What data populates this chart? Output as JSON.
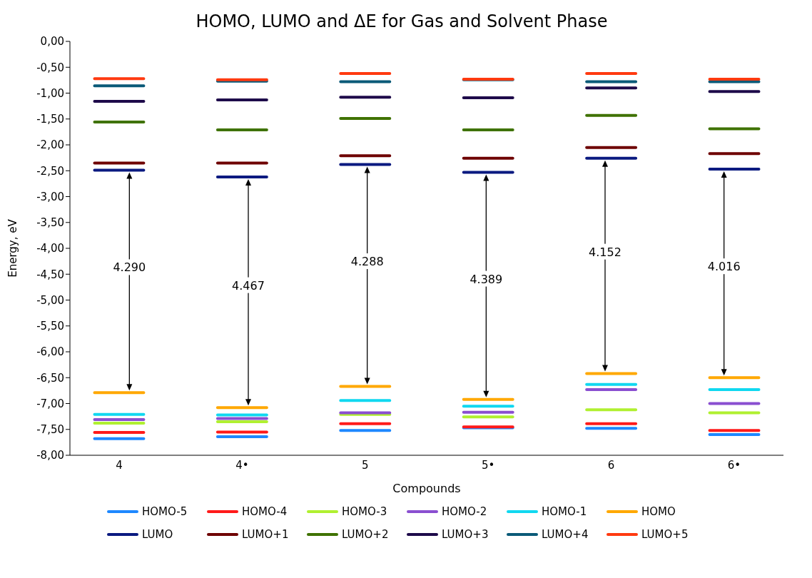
{
  "chart_data": {
    "type": "line",
    "title": "HOMO, LUMO and ΔE for Gas and Solvent Phase",
    "xlabel": "Compounds",
    "ylabel": "Energy, eV",
    "categories": [
      null,
      null,
      "4",
      null,
      null,
      null,
      null,
      "4•",
      null,
      null,
      null,
      null,
      "5",
      null,
      null,
      null,
      null,
      "5•",
      null,
      null,
      null,
      null,
      "6",
      null,
      null,
      null,
      null,
      "6•",
      null,
      null
    ],
    "ylim": [
      -8,
      0
    ],
    "yticks": [
      {
        "value": 0,
        "label": "0,00"
      },
      {
        "value": -0.5,
        "label": "-0,50"
      },
      {
        "value": -1,
        "label": "-1,00"
      },
      {
        "value": -1.5,
        "label": "-1,50"
      },
      {
        "value": -2,
        "label": "-2,00"
      },
      {
        "value": -2.5,
        "label": "-2,50"
      },
      {
        "value": -3,
        "label": "-3,00"
      },
      {
        "value": -3.5,
        "label": "-3,50"
      },
      {
        "value": -4,
        "label": "-4,00"
      },
      {
        "value": -4.5,
        "label": "-4,50"
      },
      {
        "value": -5,
        "label": "-5,00"
      },
      {
        "value": -5.5,
        "label": "-5,50"
      },
      {
        "value": -6,
        "label": "-6,00"
      },
      {
        "value": -6.5,
        "label": "-6,50"
      },
      {
        "value": -7,
        "label": "-7,00"
      },
      {
        "value": -7.5,
        "label": "-7,50"
      },
      {
        "value": -8,
        "label": "-8,00"
      }
    ],
    "grid": false,
    "legend": "bottom",
    "line_style": "solid",
    "series": [
      {
        "name": "HOMO-5",
        "color": "#1e88ff",
        "values": [
          null,
          -7.68,
          -7.68,
          -7.68,
          null,
          null,
          -7.64,
          -7.64,
          -7.64,
          null,
          null,
          -7.52,
          -7.52,
          -7.52,
          null,
          null,
          -7.47,
          -7.47,
          -7.47,
          null,
          null,
          -7.48,
          -7.48,
          -7.48,
          null,
          null,
          -7.6,
          -7.6,
          -7.6,
          null
        ]
      },
      {
        "name": "HOMO-4",
        "color": "#ff1a1a",
        "values": [
          null,
          -7.56,
          -7.56,
          -7.56,
          null,
          null,
          -7.55,
          -7.55,
          -7.55,
          null,
          null,
          -7.39,
          -7.39,
          -7.39,
          null,
          null,
          -7.45,
          -7.45,
          -7.45,
          null,
          null,
          -7.39,
          -7.39,
          -7.39,
          null,
          null,
          -7.52,
          -7.52,
          -7.52,
          null
        ]
      },
      {
        "name": "HOMO-3",
        "color": "#b0f030",
        "values": [
          null,
          -7.38,
          -7.38,
          -7.38,
          null,
          null,
          -7.35,
          -7.35,
          -7.35,
          null,
          null,
          -7.21,
          -7.21,
          -7.21,
          null,
          null,
          -7.26,
          -7.26,
          -7.26,
          null,
          null,
          -7.12,
          -7.12,
          -7.12,
          null,
          null,
          -7.18,
          -7.18,
          -7.18,
          null
        ]
      },
      {
        "name": "HOMO-2",
        "color": "#8a4fd0",
        "values": [
          null,
          -7.31,
          -7.31,
          -7.31,
          null,
          null,
          -7.29,
          -7.29,
          -7.29,
          null,
          null,
          -7.18,
          -7.18,
          -7.18,
          null,
          null,
          -7.17,
          -7.17,
          -7.17,
          null,
          null,
          -6.73,
          -6.73,
          -6.73,
          null,
          null,
          -7.0,
          -7.0,
          -7.0,
          null
        ]
      },
      {
        "name": "HOMO-1",
        "color": "#10d8f0",
        "values": [
          null,
          -7.21,
          -7.21,
          -7.21,
          null,
          null,
          -7.22,
          -7.22,
          -7.22,
          null,
          null,
          -6.94,
          -6.94,
          -6.94,
          null,
          null,
          -7.05,
          -7.05,
          -7.05,
          null,
          null,
          -6.63,
          -6.63,
          -6.63,
          null,
          null,
          -6.73,
          -6.73,
          -6.73,
          null
        ]
      },
      {
        "name": "HOMO",
        "color": "#ffa800",
        "values": [
          null,
          -6.79,
          -6.79,
          -6.79,
          null,
          null,
          -7.08,
          -7.08,
          -7.08,
          null,
          null,
          -6.67,
          -6.67,
          -6.67,
          null,
          null,
          -6.92,
          -6.92,
          -6.92,
          null,
          null,
          -6.42,
          -6.42,
          -6.42,
          null,
          null,
          -6.5,
          -6.5,
          -6.5,
          null
        ]
      },
      {
        "name": "LUMO",
        "color": "#0a1a80",
        "values": [
          null,
          -2.49,
          -2.49,
          -2.49,
          null,
          null,
          -2.62,
          -2.62,
          -2.62,
          null,
          null,
          -2.38,
          -2.38,
          -2.38,
          null,
          null,
          -2.53,
          -2.53,
          -2.53,
          null,
          null,
          -2.26,
          -2.26,
          -2.26,
          null,
          null,
          -2.47,
          -2.47,
          -2.47,
          null
        ]
      },
      {
        "name": "LUMO+1",
        "color": "#6e0000",
        "values": [
          null,
          -2.35,
          -2.35,
          -2.35,
          null,
          null,
          -2.35,
          -2.35,
          -2.35,
          null,
          null,
          -2.21,
          -2.21,
          -2.21,
          null,
          null,
          -2.26,
          -2.26,
          -2.26,
          null,
          null,
          -2.05,
          -2.05,
          -2.05,
          null,
          null,
          -2.17,
          -2.17,
          -2.17,
          null
        ]
      },
      {
        "name": "LUMO+2",
        "color": "#3f7200",
        "values": [
          null,
          -1.56,
          -1.56,
          -1.56,
          null,
          null,
          -1.71,
          -1.71,
          -1.71,
          null,
          null,
          -1.49,
          -1.49,
          -1.49,
          null,
          null,
          -1.71,
          -1.71,
          -1.71,
          null,
          null,
          -1.43,
          -1.43,
          -1.43,
          null,
          null,
          -1.69,
          -1.69,
          -1.69,
          null
        ]
      },
      {
        "name": "LUMO+3",
        "color": "#1e0a4a",
        "values": [
          null,
          -1.16,
          -1.16,
          -1.16,
          null,
          null,
          -1.13,
          -1.13,
          -1.13,
          null,
          null,
          -1.08,
          -1.08,
          -1.08,
          null,
          null,
          -1.09,
          -1.09,
          -1.09,
          null,
          null,
          -0.9,
          -0.9,
          -0.9,
          null,
          null,
          -0.97,
          -0.97,
          -0.97,
          null
        ]
      },
      {
        "name": "LUMO+4",
        "color": "#0a5a78",
        "values": [
          null,
          -0.86,
          -0.86,
          -0.86,
          null,
          null,
          -0.77,
          -0.77,
          -0.77,
          null,
          null,
          -0.78,
          -0.78,
          -0.78,
          null,
          null,
          -0.74,
          -0.74,
          -0.74,
          null,
          null,
          -0.78,
          -0.78,
          -0.78,
          null,
          null,
          -0.78,
          -0.78,
          -0.78,
          null
        ]
      },
      {
        "name": "LUMO+5",
        "color": "#ff3a10",
        "values": [
          null,
          -0.72,
          -0.72,
          -0.72,
          null,
          null,
          -0.74,
          -0.74,
          -0.74,
          null,
          null,
          -0.62,
          -0.62,
          -0.62,
          null,
          null,
          -0.73,
          -0.73,
          -0.73,
          null,
          null,
          -0.62,
          -0.62,
          -0.62,
          null,
          null,
          -0.73,
          -0.73,
          -0.73,
          null
        ]
      }
    ],
    "annotations": [
      "4.290",
      "4.467",
      "4.288",
      "4.389",
      "4.152",
      "4.016"
    ]
  }
}
